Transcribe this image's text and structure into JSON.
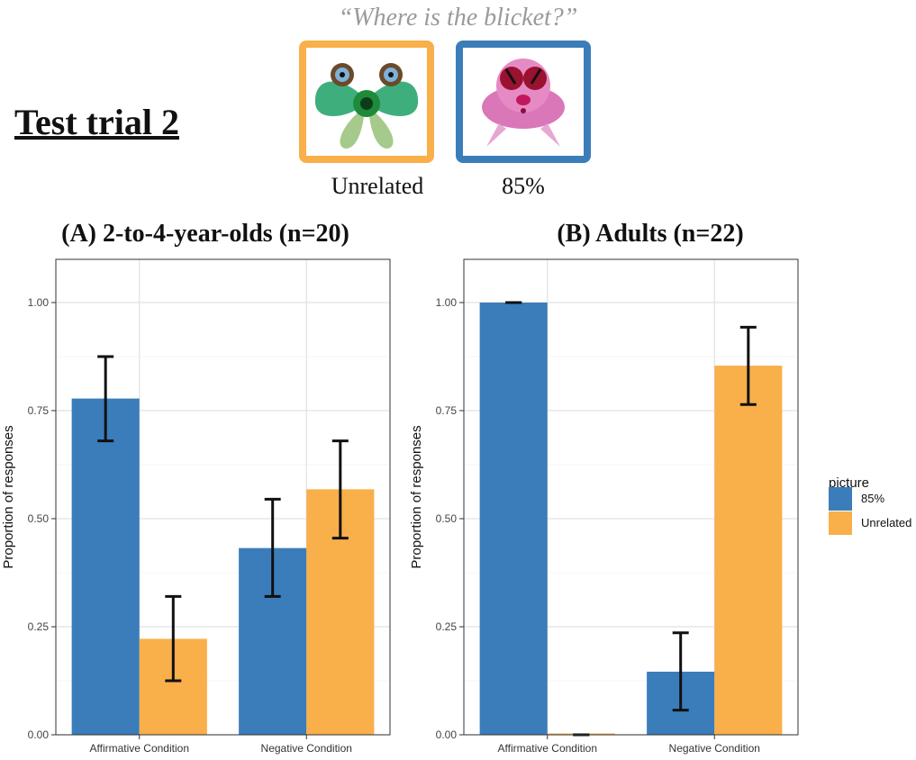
{
  "header": {
    "quote": "“Where is the blicket?”",
    "trial_title": "Test trial 2",
    "pictures": [
      {
        "label": "Unrelated",
        "border_color": "#F9AF4A",
        "creature": "green-winged-creature-image"
      },
      {
        "label": "85%",
        "border_color": "#3B7DB8",
        "creature": "pink-round-creature-image"
      }
    ]
  },
  "legend": {
    "title": "picture",
    "items": [
      {
        "label": "85%",
        "color": "#3A7DBA"
      },
      {
        "label": "Unrelated",
        "color": "#F9AF4A"
      }
    ]
  },
  "chart_data": [
    {
      "type": "bar",
      "title": "(A) 2-to-4-year-olds (n=20)",
      "ylabel": "Proportion of responses",
      "ylim": [
        0,
        1.1
      ],
      "yticks": [
        "0.00",
        "0.25",
        "0.50",
        "0.75",
        "1.00"
      ],
      "categories": [
        "Affirmative Condition",
        "Negative Condition"
      ],
      "series": [
        {
          "name": "85%",
          "values": [
            0.778,
            0.432
          ],
          "err_low": [
            0.68,
            0.32
          ],
          "err_high": [
            0.875,
            0.545
          ]
        },
        {
          "name": "Unrelated",
          "values": [
            0.222,
            0.568
          ],
          "err_low": [
            0.125,
            0.455
          ],
          "err_high": [
            0.32,
            0.68
          ]
        }
      ],
      "grid": true
    },
    {
      "type": "bar",
      "title": "(B) Adults (n=22)",
      "ylabel": "Proportion of responses",
      "ylim": [
        0,
        1.1
      ],
      "yticks": [
        "0.00",
        "0.25",
        "0.50",
        "0.75",
        "1.00"
      ],
      "categories": [
        "Affirmative Condition",
        "Negative Condition"
      ],
      "series": [
        {
          "name": "85%",
          "values": [
            1.0,
            0.146
          ],
          "err_low": [
            1.0,
            0.057
          ],
          "err_high": [
            1.0,
            0.236
          ]
        },
        {
          "name": "Unrelated",
          "values": [
            0.0,
            0.854
          ],
          "err_low": [
            0.0,
            0.764
          ],
          "err_high": [
            0.0,
            0.943
          ]
        }
      ],
      "grid": true
    }
  ]
}
